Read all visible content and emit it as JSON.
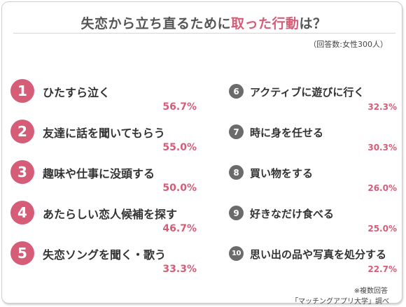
{
  "colors": {
    "accent": "#d55d78",
    "left_badge": "#d55d78",
    "right_badge": "#6b6b6b",
    "left_value": "#d55d78",
    "right_value": "#d55d78"
  },
  "header": {
    "title_prefix": "失恋から立ち直るために",
    "title_highlight": "取った行動",
    "title_suffix": "は？",
    "note": "（回答数:女性300人）"
  },
  "footer": {
    "multiple_answers": "※複数回答",
    "source": "「マッチングアプリ大学」調べ"
  },
  "chart_data": {
    "type": "table",
    "unit": "%",
    "rows": [
      {
        "rank": "1",
        "label": "ひたすら泣く",
        "value": 56.7,
        "value_text": "56.7%"
      },
      {
        "rank": "2",
        "label": "友達に話を聞いてもらう",
        "value": 55.0,
        "value_text": "55.0%"
      },
      {
        "rank": "3",
        "label": "趣味や仕事に没頭する",
        "value": 50.0,
        "value_text": "50.0%"
      },
      {
        "rank": "4",
        "label": "あたらしい恋人候補を探す",
        "value": 46.7,
        "value_text": "46.7%"
      },
      {
        "rank": "5",
        "label": "失恋ソングを聞く・歌う",
        "value": 33.3,
        "value_text": "33.3%"
      },
      {
        "rank": "6",
        "label": "アクティブに遊びに行く",
        "value": 32.3,
        "value_text": "32.3%"
      },
      {
        "rank": "7",
        "label": "時に身を任せる",
        "value": 30.3,
        "value_text": "30.3%"
      },
      {
        "rank": "8",
        "label": "買い物をする",
        "value": 26.0,
        "value_text": "26.0%"
      },
      {
        "rank": "9",
        "label": "好きなだけ食べる",
        "value": 25.0,
        "value_text": "25.0%"
      },
      {
        "rank": "10",
        "label": "思い出の品や写真を処分する",
        "value": 22.7,
        "value_text": "22.7%"
      }
    ]
  }
}
